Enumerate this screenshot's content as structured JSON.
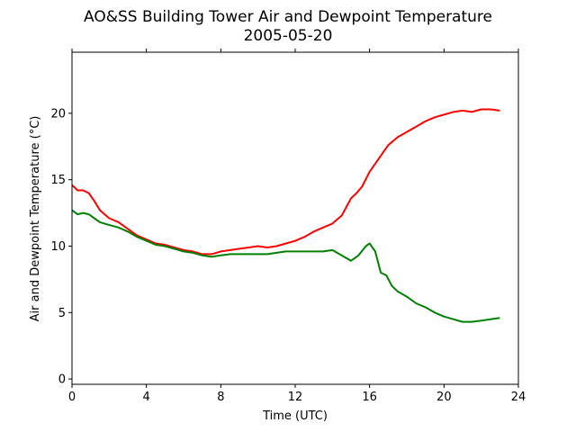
{
  "chart_data": {
    "type": "line",
    "title": "AO&SS Building Tower Air and Dewpoint Temperature",
    "subtitle": "2005-05-20",
    "xlabel": "Time (UTC)",
    "ylabel": "Air and Dewpoint Temperature (°C)",
    "xlim": [
      0,
      24
    ],
    "ylim": [
      -0.4,
      24.6
    ],
    "xticks": [
      0,
      4,
      8,
      12,
      16,
      20,
      24
    ],
    "yticks": [
      0,
      5,
      10,
      15,
      20
    ],
    "grid": false,
    "series": [
      {
        "color": "#ff0000",
        "x": [
          0,
          0.3,
          0.6,
          0.9,
          1.2,
          1.5,
          2,
          2.5,
          3,
          3.5,
          4,
          4.5,
          5,
          5.5,
          6,
          6.5,
          7,
          7.5,
          8,
          8.5,
          9,
          9.5,
          10,
          10.5,
          11,
          11.5,
          12,
          12.5,
          13,
          13.5,
          14,
          14.5,
          15,
          15.3,
          15.6,
          16,
          16.5,
          17,
          17.5,
          18,
          18.5,
          19,
          19.5,
          20,
          20.5,
          21,
          21.5,
          22,
          22.5,
          23
        ],
        "y": [
          14.6,
          14.2,
          14.2,
          14.0,
          13.4,
          12.7,
          12.1,
          11.8,
          11.3,
          10.8,
          10.5,
          10.2,
          10.1,
          9.9,
          9.7,
          9.6,
          9.4,
          9.4,
          9.6,
          9.7,
          9.8,
          9.9,
          10.0,
          9.9,
          10.0,
          10.2,
          10.4,
          10.7,
          11.1,
          11.4,
          11.7,
          12.3,
          13.6,
          14.0,
          14.5,
          15.6,
          16.6,
          17.6,
          18.2,
          18.6,
          19.0,
          19.4,
          19.7,
          19.9,
          20.1,
          20.2,
          20.1,
          20.3,
          20.3,
          20.2
        ]
      },
      {
        "color": "#008000",
        "x": [
          0,
          0.3,
          0.6,
          0.9,
          1.2,
          1.5,
          2,
          2.5,
          3,
          3.5,
          4,
          4.5,
          5,
          5.5,
          6,
          6.5,
          7,
          7.5,
          8,
          8.5,
          9,
          9.5,
          10,
          10.5,
          11,
          11.5,
          12,
          12.5,
          13,
          13.5,
          14,
          14.5,
          15,
          15.4,
          15.8,
          16,
          16.3,
          16.6,
          16.9,
          17.2,
          17.5,
          18,
          18.5,
          19,
          19.5,
          20,
          20.5,
          21,
          21.5,
          22,
          22.5,
          23
        ],
        "y": [
          12.7,
          12.4,
          12.5,
          12.4,
          12.1,
          11.8,
          11.6,
          11.4,
          11.1,
          10.7,
          10.4,
          10.1,
          10.0,
          9.8,
          9.6,
          9.5,
          9.3,
          9.2,
          9.3,
          9.4,
          9.4,
          9.4,
          9.4,
          9.4,
          9.5,
          9.6,
          9.6,
          9.6,
          9.6,
          9.6,
          9.7,
          9.3,
          8.9,
          9.3,
          10.0,
          10.2,
          9.6,
          8.0,
          7.8,
          7.0,
          6.6,
          6.2,
          5.7,
          5.4,
          5.0,
          4.7,
          4.5,
          4.3,
          4.3,
          4.4,
          4.5,
          4.6
        ]
      }
    ]
  }
}
